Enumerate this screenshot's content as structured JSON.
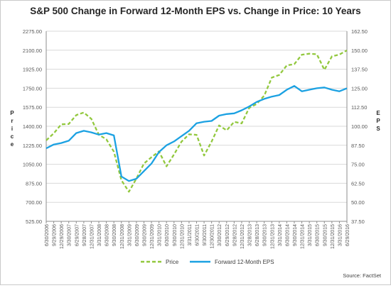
{
  "chart_data": {
    "type": "line",
    "title": "S&P 500 Change in Forward 12-Month EPS vs. Change in Price: 10 Years",
    "left_axis_label": "Price",
    "right_axis_label": "EPS",
    "left_ticks": [
      "2275.00",
      "2100.00",
      "1925.00",
      "1750.00",
      "1575.00",
      "1400.00",
      "1225.00",
      "1050.00",
      "875.00",
      "700.00",
      "525.00"
    ],
    "right_ticks": [
      "162.50",
      "150.00",
      "137.50",
      "125.00",
      "112.50",
      "100.00",
      "87.50",
      "75.00",
      "62.50",
      "50.00",
      "37.50"
    ],
    "left_range": [
      525,
      2275
    ],
    "right_range": [
      37.5,
      162.5
    ],
    "x_tick_labels": [
      "6/30/2006",
      "9/29/2006",
      "12/29/2006",
      "3/30/2007",
      "6/29/2007",
      "9/28/2007",
      "12/31/2007",
      "3/31/2008",
      "6/30/2008",
      "9/30/2008",
      "12/31/2008",
      "3/31/2009",
      "6/30/2009",
      "9/30/2009",
      "12/31/2009",
      "3/31/2010",
      "6/30/2010",
      "9/30/2010",
      "12/31/2010",
      "3/31/2011",
      "6/30/2011",
      "9/30/2011",
      "12/30/2011",
      "3/30/2012",
      "6/29/2012",
      "9/28/2012",
      "12/31/2012",
      "3/28/2013",
      "6/28/2013",
      "9/30/2013",
      "12/31/2013",
      "3/31/2014",
      "6/30/2014",
      "9/30/2014",
      "12/31/2014",
      "3/31/2015",
      "6/30/2015",
      "9/30/2015",
      "12/31/2015",
      "3/31/2016",
      "6/29/2016"
    ],
    "series": [
      {
        "name": "Price",
        "axis": "left",
        "color": "#92c83e",
        "style": "dashed",
        "values": [
          1270,
          1335,
          1418,
          1421,
          1503,
          1527,
          1468,
          1322,
          1280,
          1166,
          903,
          797,
          919,
          1057,
          1115,
          1169,
          1031,
          1141,
          1258,
          1326,
          1321,
          1131,
          1258,
          1408,
          1362,
          1441,
          1426,
          1569,
          1606,
          1682,
          1848,
          1872,
          1960,
          1972,
          2059,
          2068,
          2063,
          1920,
          2044,
          2060,
          2099
        ]
      },
      {
        "name": "Forward 12-Month EPS",
        "axis": "right",
        "color": "#1ba1e2",
        "style": "solid",
        "values": [
          85.5,
          88.0,
          89.0,
          90.5,
          95.5,
          97.0,
          96.0,
          94.5,
          95.5,
          94.0,
          67.0,
          64.0,
          65.5,
          70.5,
          75.5,
          83.0,
          87.5,
          90.0,
          93.5,
          97.0,
          102.0,
          103.0,
          103.5,
          107.0,
          108.0,
          108.5,
          110.5,
          113.0,
          116.0,
          118.0,
          119.5,
          120.5,
          124.0,
          126.5,
          123.0,
          124.0,
          125.0,
          125.5,
          124.0,
          123.0,
          125.0
        ]
      }
    ],
    "legend_position": "bottom",
    "source": "Source: FactSet"
  },
  "colors": {
    "price": "#92c83e",
    "eps": "#1ba1e2",
    "grid": "#d9d9d9",
    "axis": "#8c8c8c",
    "text": "#595959"
  }
}
